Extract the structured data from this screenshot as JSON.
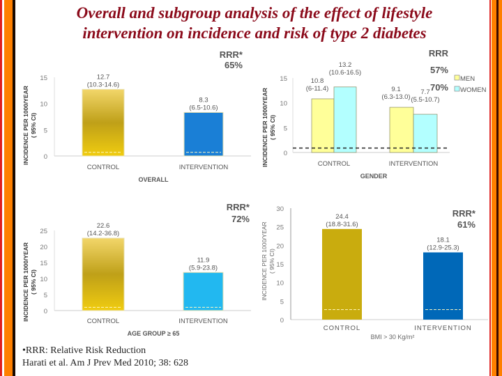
{
  "title_line1": "Overall and subgroup analysis of the  effect  of  lifestyle",
  "title_line2": "intervention on incidence and risk of type 2 diabetes",
  "footnote": "•RRR: Relative Risk Reduction",
  "citation": "Harati et al. Am J Prev Med 2010; 38: 628",
  "colors": {
    "border_orange": "#ff8000",
    "border_red": "#e02020",
    "title": "#8b0a1a"
  },
  "chart_data": [
    {
      "type": "bar",
      "id": "overall",
      "categories": [
        "CONTROL",
        "INTERVENTION"
      ],
      "values": [
        12.7,
        8.3
      ],
      "ci_labels": [
        "(10.3-14.6)",
        "(6.5-10.6)"
      ],
      "colors": [
        "#c9a814",
        "#1a7fd6"
      ],
      "xlabel": "OVERALL",
      "ylabel": [
        "INCIDENCE  PER  1000/YEAR",
        "( 95% CI)"
      ],
      "ylim": [
        0,
        15
      ],
      "yticks": [
        0,
        5,
        10,
        15
      ],
      "rrr": [
        "RRR*",
        "65%"
      ]
    },
    {
      "type": "bar",
      "id": "gender",
      "categories": [
        "CONTROL",
        "INTERVENTION"
      ],
      "series": [
        {
          "name": "MEN",
          "values": [
            10.8,
            9.1
          ],
          "ci_labels": [
            "(6-11.4)",
            "(6.3-13.0)"
          ],
          "color": "#ffff99"
        },
        {
          "name": "WOMEN",
          "values": [
            13.2,
            7.7
          ],
          "ci_labels": [
            "(10.6-16.5)",
            "(5.5-10.7)"
          ],
          "color": "#b3ffff"
        }
      ],
      "xlabel": "GENDER",
      "ylabel": [
        "INCIDENCE  PER  1000/YEAR",
        "( 95% CI)"
      ],
      "ylim": [
        0,
        15
      ],
      "yticks": [
        0,
        5,
        10,
        15
      ],
      "rrr": [
        "RRR",
        "57%",
        "70%"
      ],
      "legend": "right"
    },
    {
      "type": "bar",
      "id": "age",
      "categories": [
        "CONTROL",
        "INTERVENTION"
      ],
      "values": [
        22.6,
        11.9
      ],
      "ci_labels": [
        "(14.2-36.8)",
        "(5.9-23.8)"
      ],
      "colors": [
        "#c9a814",
        "#22b8f0"
      ],
      "xlabel": "AGE GROUP ≥ 65",
      "ylabel": [
        "INCIDENCE  PER  1000/YEAR",
        "( 95% CI)"
      ],
      "ylim": [
        0,
        25
      ],
      "yticks": [
        0,
        5,
        10,
        15,
        20,
        25
      ],
      "rrr": [
        "RRR*",
        "72%"
      ]
    },
    {
      "type": "bar",
      "id": "bmi",
      "categories": [
        "CONTROL",
        "INTERVENTION"
      ],
      "values": [
        24.4,
        18.1
      ],
      "ci_labels": [
        "(18.8-31.6)",
        "(12.9-25.3)"
      ],
      "colors": [
        "#c9ac0e",
        "#0068b8"
      ],
      "xlabel": "BMI > 30 Kg/m²",
      "ylabel": [
        "INCIDENCE  PER  1000/YEAR",
        "( 95% CI)"
      ],
      "ylim": [
        0,
        30
      ],
      "yticks": [
        0,
        5,
        10,
        15,
        20,
        25,
        30
      ],
      "rrr": [
        "RRR*",
        "61%"
      ]
    }
  ]
}
